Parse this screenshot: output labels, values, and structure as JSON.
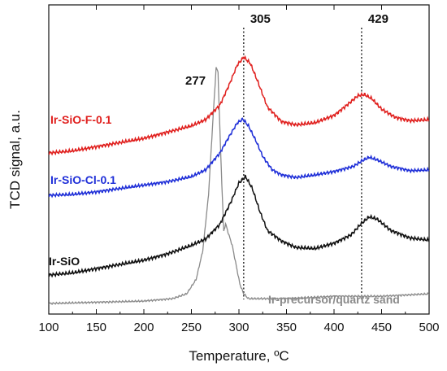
{
  "chart_data": {
    "type": "line",
    "xlabel": "Temperature, ºC",
    "ylabel": "TCD signal, a.u.",
    "xlim": [
      100,
      500
    ],
    "x_ticks": [
      "100",
      "150",
      "200",
      "250",
      "300",
      "350",
      "400",
      "450",
      "500"
    ],
    "y_tick_labels_shown": false,
    "grid": false,
    "legend": "none (series names printed next to curves)",
    "annotations": [
      {
        "text": "277",
        "x": 277,
        "style": "label only"
      },
      {
        "text": "305",
        "x": 305,
        "style": "dotted vertical line"
      },
      {
        "text": "429",
        "x": 429,
        "style": "dotted vertical line"
      }
    ],
    "series": [
      {
        "name": "Ir-SiO-F-0.1",
        "color": "#e0201e",
        "x": [
          100,
          125,
          150,
          175,
          200,
          225,
          250,
          265,
          280,
          290,
          298,
          305,
          312,
          320,
          330,
          345,
          360,
          380,
          400,
          415,
          425,
          432,
          440,
          450,
          465,
          480,
          500
        ],
        "y": [
          0.0,
          0.02,
          0.06,
          0.1,
          0.14,
          0.2,
          0.26,
          0.32,
          0.46,
          0.66,
          0.84,
          0.92,
          0.86,
          0.68,
          0.44,
          0.3,
          0.27,
          0.29,
          0.36,
          0.47,
          0.55,
          0.56,
          0.52,
          0.42,
          0.34,
          0.31,
          0.32
        ]
      },
      {
        "name": "Ir-SiO-Cl-0.1",
        "color": "#1f2fd8",
        "x": [
          100,
          125,
          150,
          175,
          200,
          225,
          250,
          265,
          280,
          290,
          298,
          304,
          310,
          318,
          325,
          335,
          345,
          360,
          380,
          400,
          420,
          430,
          437,
          445,
          460,
          480,
          500
        ],
        "y": [
          0.0,
          0.01,
          0.04,
          0.08,
          0.12,
          0.16,
          0.22,
          0.3,
          0.5,
          0.7,
          0.85,
          0.9,
          0.82,
          0.64,
          0.46,
          0.3,
          0.24,
          0.21,
          0.24,
          0.28,
          0.34,
          0.41,
          0.45,
          0.42,
          0.34,
          0.29,
          0.3
        ]
      },
      {
        "name": "Ir-SiO",
        "color": "#111111",
        "x": [
          100,
          125,
          150,
          175,
          200,
          225,
          250,
          265,
          280,
          292,
          300,
          307,
          314,
          322,
          330,
          345,
          360,
          380,
          400,
          418,
          428,
          437,
          445,
          460,
          480,
          500
        ],
        "y": [
          0.0,
          0.02,
          0.06,
          0.1,
          0.14,
          0.2,
          0.28,
          0.34,
          0.48,
          0.7,
          0.87,
          0.93,
          0.82,
          0.6,
          0.42,
          0.32,
          0.26,
          0.25,
          0.3,
          0.38,
          0.48,
          0.55,
          0.53,
          0.42,
          0.35,
          0.33
        ]
      },
      {
        "name": "Ir-precursor/quartz sand",
        "color": "#8a8a8a",
        "x": [
          100,
          150,
          200,
          230,
          245,
          255,
          262,
          268,
          272,
          276,
          278,
          281,
          284,
          286,
          289,
          293,
          297,
          301,
          305,
          310,
          320,
          350,
          400,
          450,
          500
        ],
        "y": [
          0.0,
          0.005,
          0.01,
          0.02,
          0.04,
          0.1,
          0.22,
          0.45,
          0.72,
          0.98,
          0.96,
          0.6,
          0.3,
          0.33,
          0.29,
          0.24,
          0.16,
          0.08,
          0.04,
          0.02,
          0.02,
          0.02,
          0.03,
          0.03,
          0.04
        ]
      }
    ]
  }
}
